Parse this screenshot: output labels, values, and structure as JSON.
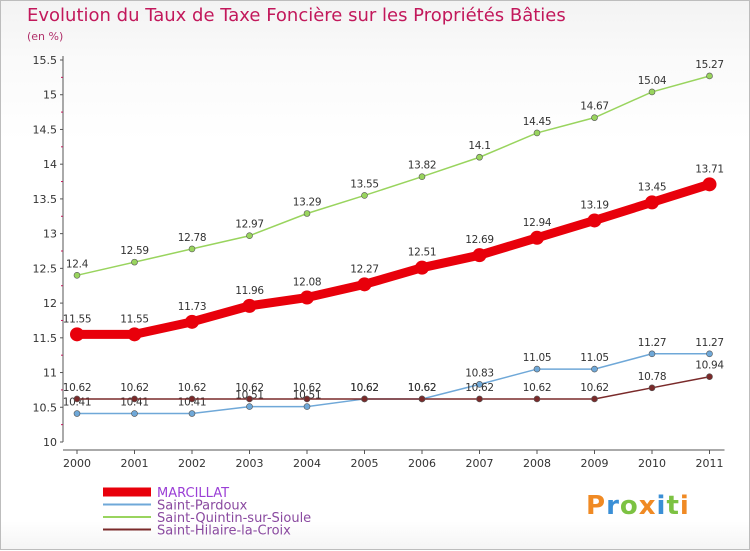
{
  "header": {
    "title": "Evolution du Taux de Taxe Foncière sur les Propriétés Bâties",
    "subtitle": "(en %)"
  },
  "logo": {
    "text": "Proxiti"
  },
  "chart_data": {
    "type": "line",
    "x": [
      2000,
      2001,
      2002,
      2003,
      2004,
      2005,
      2006,
      2007,
      2008,
      2009,
      2010,
      2011
    ],
    "xticks": [
      "2000",
      "2001",
      "2002",
      "2003",
      "2004",
      "2005",
      "2006",
      "2007",
      "2008",
      "2009",
      "2010",
      "2011"
    ],
    "ylim": [
      10,
      15.5
    ],
    "yticks": [
      "10",
      "10.5",
      "11",
      "11.5",
      "12",
      "12.5",
      "13",
      "13.5",
      "14",
      "14.5",
      "15",
      "15.5"
    ],
    "grid": false,
    "legend_position": "bottom-left",
    "series": [
      {
        "name": "Saint-Quintin-sur-Sioule",
        "color": "#99d45e",
        "values": [
          12.4,
          12.59,
          12.78,
          12.97,
          13.29,
          13.55,
          13.82,
          14.1,
          14.45,
          14.67,
          15.04,
          15.27
        ],
        "labels": [
          "12.4",
          "12.59",
          "12.78",
          "12.97",
          "13.29",
          "13.55",
          "13.82",
          "14.1",
          "14.45",
          "14.67",
          "15.04",
          "15.27"
        ]
      },
      {
        "name": "Saint-Pardoux",
        "color": "#6fa8d8",
        "values": [
          10.41,
          10.41,
          10.41,
          10.51,
          10.51,
          10.62,
          10.62,
          10.83,
          11.05,
          11.05,
          11.27,
          11.27
        ],
        "labels": [
          "10.41",
          "10.41",
          "10.41",
          "10.51",
          "10.51",
          "10.62",
          "10.62",
          "10.83",
          "11.05",
          "11.05",
          "11.27",
          "11.27"
        ]
      },
      {
        "name": "Saint-Hilaire-la-Croix",
        "color": "#7a2a2a",
        "values": [
          10.62,
          10.62,
          10.62,
          10.62,
          10.62,
          10.62,
          10.62,
          10.62,
          10.62,
          10.62,
          10.78,
          10.94
        ],
        "labels": [
          "10.62",
          "10.62",
          "10.62",
          "10.62",
          "10.62",
          "10.62",
          "10.62",
          "10.62",
          "10.62",
          "10.62",
          "10.78",
          "10.94"
        ]
      },
      {
        "name": "MARCILLAT",
        "color": "#e8000b",
        "highlight": true,
        "values": [
          11.55,
          11.55,
          11.73,
          11.96,
          12.08,
          12.27,
          12.51,
          12.69,
          12.94,
          13.19,
          13.45,
          13.71
        ],
        "labels": [
          "11.55",
          "11.55",
          "11.73",
          "11.96",
          "12.08",
          "12.27",
          "12.51",
          "12.69",
          "12.94",
          "13.19",
          "13.45",
          "13.71"
        ]
      }
    ],
    "legend_order": [
      "MARCILLAT",
      "Saint-Pardoux",
      "Saint-Quintin-sur-Sioule",
      "Saint-Hilaire-la-Croix"
    ]
  }
}
